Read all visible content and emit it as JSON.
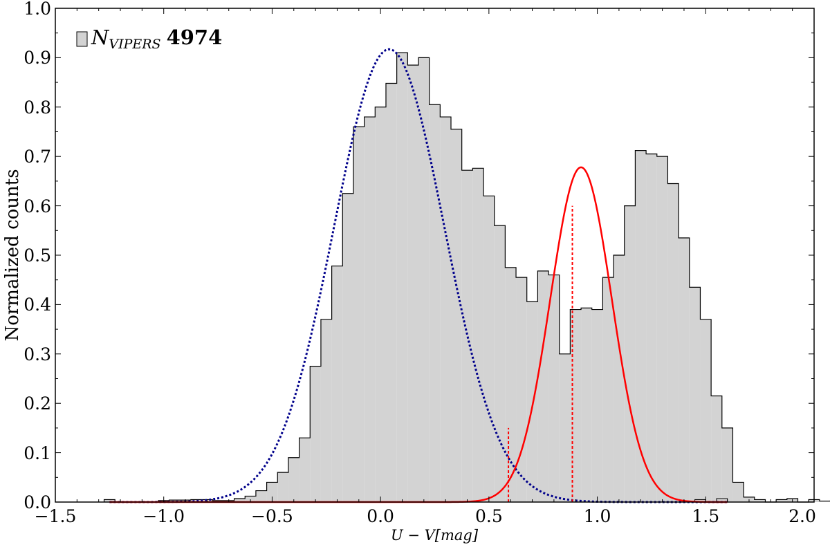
{
  "chart_data": {
    "type": "bar",
    "xlabel": "U − V[mag]",
    "ylabel": "Normalized counts",
    "xlim": [
      -1.5,
      2.0
    ],
    "ylim": [
      0.0,
      1.0
    ],
    "xticks": [
      "−1.5",
      "−1.0",
      "−0.5",
      "0.0",
      "0.5",
      "1.0",
      "1.5",
      "2.0"
    ],
    "yticks": [
      "0.0",
      "0.1",
      "0.2",
      "0.3",
      "0.4",
      "0.5",
      "0.6",
      "0.7",
      "0.8",
      "0.9",
      "1.0"
    ],
    "legend": {
      "position": "top-left",
      "label_main": "N",
      "label_sub": "VIPERS",
      "label_count": "4974"
    },
    "histogram": {
      "bin_start": -1.275,
      "bin_width": 0.05,
      "fill_color": "#d3d3d3",
      "edge_color": "#000000",
      "values": [
        0.005,
        0.0,
        0.0,
        0.0,
        0.0,
        0.003,
        0.004,
        0.004,
        0.005,
        0.005,
        0.003,
        0.003,
        0.007,
        0.012,
        0.023,
        0.04,
        0.06,
        0.09,
        0.13,
        0.275,
        0.37,
        0.478,
        0.625,
        0.76,
        0.78,
        0.8,
        0.848,
        0.91,
        0.885,
        0.9,
        0.805,
        0.78,
        0.755,
        0.672,
        0.676,
        0.62,
        0.56,
        0.475,
        0.455,
        0.406,
        0.468,
        0.46,
        0.3,
        0.39,
        0.393,
        0.39,
        0.455,
        0.5,
        0.6,
        0.712,
        0.705,
        0.7,
        0.645,
        0.535,
        0.435,
        0.37,
        0.215,
        0.15,
        0.04,
        0.01,
        0.005,
        0.0,
        0.005,
        0.007,
        0.0,
        0.005,
        0.002,
        0.003
      ],
      "extra_bins": [
        {
          "x": 1.45,
          "value": 0.005
        },
        {
          "x": 1.55,
          "value": 0.007
        }
      ]
    },
    "series": [
      {
        "line_style": "dotted",
        "color": "#00008b",
        "amplitude": 0.917,
        "mean": 0.04,
        "sigma": 0.255
      },
      {
        "line_style": "solid",
        "color": "#ff0000",
        "amplitude": 0.678,
        "mean": 0.925,
        "sigma": 0.142
      }
    ],
    "vlines": [
      {
        "x": 0.59,
        "y_top": 0.15,
        "color": "#ff0000",
        "style": "dashed"
      },
      {
        "x": 0.885,
        "y_top": 0.6,
        "color": "#ff0000",
        "style": "dashed"
      }
    ]
  }
}
